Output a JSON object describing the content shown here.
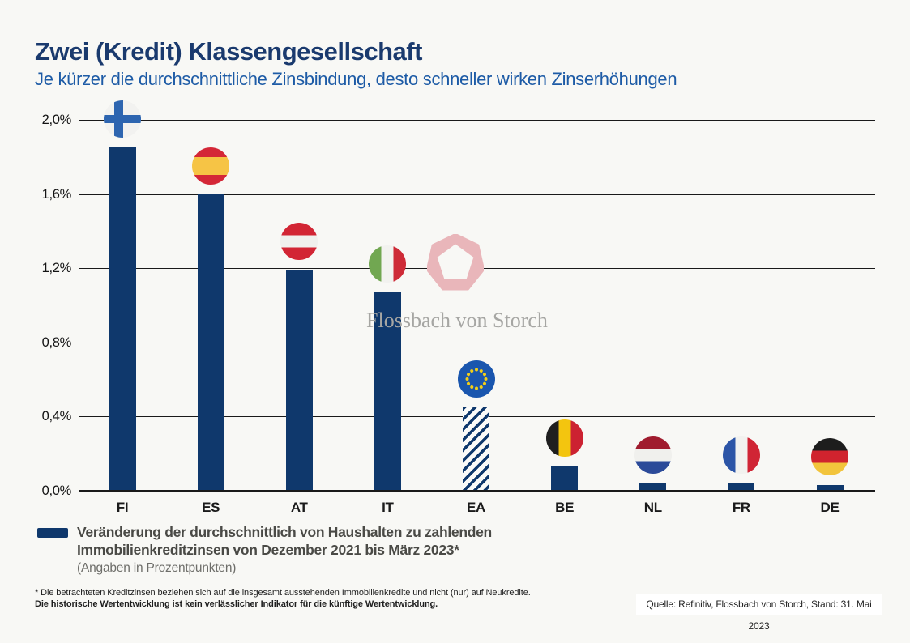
{
  "header": {
    "title": "Zwei (Kredit) Klassengesellschaft",
    "subtitle": "Je kürzer die durchschnittliche Zinsbindung, desto schneller wirken Zinserhöhungen"
  },
  "colors": {
    "title_navy": "#1a3a6e",
    "subtitle_blue": "#1d5ba6",
    "watermark_pink": "#e9b6ba",
    "background": "#f8f8f5"
  },
  "chart_data": {
    "type": "bar",
    "categories": [
      "FI",
      "ES",
      "AT",
      "IT",
      "EA",
      "BE",
      "NL",
      "FR",
      "DE"
    ],
    "values": [
      1.85,
      1.6,
      1.19,
      1.07,
      0.45,
      0.13,
      0.04,
      0.04,
      0.03
    ],
    "hatched_categories": [
      "EA"
    ],
    "flags": [
      "finland",
      "spain",
      "austria",
      "italy",
      "european-union",
      "belgium",
      "netherlands",
      "france",
      "germany"
    ],
    "bar_color": "#0f386c",
    "title": "Zwei (Kredit) Klassengesellschaft",
    "xlabel": "",
    "ylabel": "",
    "ylim": [
      0,
      2.0
    ],
    "yticks": [
      0,
      0.4,
      0.8,
      1.2,
      1.6,
      2.0
    ],
    "ytick_labels": [
      "0,0%",
      "0,4%",
      "0,8%",
      "1,2%",
      "1,6%",
      "2,0%"
    ],
    "grid": true,
    "legend_position": "bottom-left",
    "unit": "Prozentpunkte"
  },
  "watermark": {
    "brand": "Flossbach von Storch"
  },
  "legend": {
    "label_line1": "Veränderung der durchschnittlich von Haushalten zu zahlenden",
    "label_line2": "Immobilienkreditzinsen von Dezember 2021 bis März 2023*",
    "sublabel": "(Angaben in Prozentpunkten)"
  },
  "footnotes": {
    "line1": "* Die betrachteten Kreditzinsen beziehen sich auf die insgesamt ausstehenden Immobilienkredite und nicht (nur) auf Neukredite.",
    "line2": "Die historische Wertentwicklung ist kein verlässlicher Indikator für die künftige Wertentwicklung."
  },
  "source": "Quelle: Refinitiv, Flossbach von Storch, Stand: 31. Mai 2023"
}
